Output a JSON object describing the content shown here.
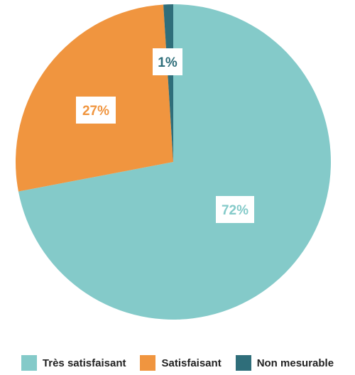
{
  "chart_data": {
    "type": "pie",
    "title": "",
    "start": "top",
    "direction": "clockwise",
    "slices": [
      {
        "name": "Très satisfaisant",
        "value": 72,
        "label": "72%",
        "color": "#84cac9"
      },
      {
        "name": "Satisfaisant",
        "value": 27,
        "label": "27%",
        "color": "#f0953f"
      },
      {
        "name": "Non mesurable",
        "value": 1,
        "label": "1%",
        "color": "#2f6e7a"
      }
    ],
    "legend": {
      "position": "bottom",
      "items": [
        {
          "label": "Très satisfaisant",
          "color": "#84cac9"
        },
        {
          "label": "Satisfaisant",
          "color": "#f0953f"
        },
        {
          "label": "Non mesurable",
          "color": "#2f6e7a"
        }
      ]
    }
  }
}
